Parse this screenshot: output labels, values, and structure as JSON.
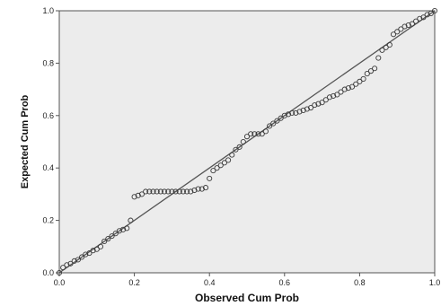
{
  "chart_data": {
    "type": "scatter",
    "title": "",
    "xlabel": "Observed Cum Prob",
    "ylabel": "Expected Cum Prob",
    "xlim": [
      0.0,
      1.0
    ],
    "ylim": [
      0.0,
      1.0
    ],
    "xticks": [
      0.0,
      0.2,
      0.4,
      0.6,
      0.8,
      1.0
    ],
    "yticks": [
      0.0,
      0.2,
      0.4,
      0.6,
      0.8,
      1.0
    ],
    "xtick_labels": [
      "0.0",
      "0.2",
      "0.4",
      "0.6",
      "0.8",
      "1.0"
    ],
    "ytick_labels": [
      "0.0",
      "0.2",
      "0.4",
      "0.6",
      "0.8",
      "1.0"
    ],
    "grid": false,
    "legend": false,
    "plot_background": "#ececec",
    "marker": "open-circle",
    "marker_color": "#3a3a3a",
    "reference_line": {
      "from": [
        0.0,
        0.0
      ],
      "to": [
        1.0,
        1.0
      ],
      "color": "#555555"
    },
    "points": [
      [
        0.0,
        0.0
      ],
      [
        0.01,
        0.02
      ],
      [
        0.02,
        0.03
      ],
      [
        0.03,
        0.035
      ],
      [
        0.04,
        0.045
      ],
      [
        0.05,
        0.05
      ],
      [
        0.06,
        0.06
      ],
      [
        0.07,
        0.07
      ],
      [
        0.08,
        0.075
      ],
      [
        0.09,
        0.085
      ],
      [
        0.1,
        0.09
      ],
      [
        0.11,
        0.1
      ],
      [
        0.12,
        0.12
      ],
      [
        0.13,
        0.13
      ],
      [
        0.14,
        0.14
      ],
      [
        0.15,
        0.15
      ],
      [
        0.16,
        0.16
      ],
      [
        0.17,
        0.165
      ],
      [
        0.18,
        0.17
      ],
      [
        0.19,
        0.2
      ],
      [
        0.2,
        0.29
      ],
      [
        0.21,
        0.295
      ],
      [
        0.22,
        0.3
      ],
      [
        0.23,
        0.31
      ],
      [
        0.24,
        0.31
      ],
      [
        0.25,
        0.31
      ],
      [
        0.26,
        0.31
      ],
      [
        0.27,
        0.31
      ],
      [
        0.28,
        0.31
      ],
      [
        0.29,
        0.31
      ],
      [
        0.3,
        0.31
      ],
      [
        0.31,
        0.31
      ],
      [
        0.32,
        0.31
      ],
      [
        0.33,
        0.31
      ],
      [
        0.34,
        0.31
      ],
      [
        0.35,
        0.31
      ],
      [
        0.36,
        0.315
      ],
      [
        0.37,
        0.32
      ],
      [
        0.38,
        0.32
      ],
      [
        0.39,
        0.325
      ],
      [
        0.4,
        0.36
      ],
      [
        0.41,
        0.39
      ],
      [
        0.42,
        0.4
      ],
      [
        0.43,
        0.41
      ],
      [
        0.44,
        0.42
      ],
      [
        0.45,
        0.43
      ],
      [
        0.46,
        0.45
      ],
      [
        0.47,
        0.47
      ],
      [
        0.48,
        0.48
      ],
      [
        0.49,
        0.5
      ],
      [
        0.5,
        0.52
      ],
      [
        0.51,
        0.53
      ],
      [
        0.52,
        0.53
      ],
      [
        0.53,
        0.53
      ],
      [
        0.54,
        0.53
      ],
      [
        0.55,
        0.54
      ],
      [
        0.56,
        0.56
      ],
      [
        0.57,
        0.57
      ],
      [
        0.58,
        0.58
      ],
      [
        0.59,
        0.59
      ],
      [
        0.6,
        0.6
      ],
      [
        0.61,
        0.605
      ],
      [
        0.62,
        0.61
      ],
      [
        0.63,
        0.61
      ],
      [
        0.64,
        0.615
      ],
      [
        0.65,
        0.62
      ],
      [
        0.66,
        0.625
      ],
      [
        0.67,
        0.63
      ],
      [
        0.68,
        0.64
      ],
      [
        0.69,
        0.645
      ],
      [
        0.7,
        0.65
      ],
      [
        0.71,
        0.66
      ],
      [
        0.72,
        0.67
      ],
      [
        0.73,
        0.675
      ],
      [
        0.74,
        0.68
      ],
      [
        0.75,
        0.69
      ],
      [
        0.76,
        0.7
      ],
      [
        0.77,
        0.705
      ],
      [
        0.78,
        0.71
      ],
      [
        0.79,
        0.72
      ],
      [
        0.8,
        0.73
      ],
      [
        0.81,
        0.74
      ],
      [
        0.82,
        0.76
      ],
      [
        0.83,
        0.77
      ],
      [
        0.84,
        0.78
      ],
      [
        0.85,
        0.82
      ],
      [
        0.86,
        0.85
      ],
      [
        0.87,
        0.86
      ],
      [
        0.88,
        0.87
      ],
      [
        0.89,
        0.91
      ],
      [
        0.9,
        0.92
      ],
      [
        0.91,
        0.93
      ],
      [
        0.92,
        0.94
      ],
      [
        0.93,
        0.945
      ],
      [
        0.94,
        0.95
      ],
      [
        0.95,
        0.96
      ],
      [
        0.96,
        0.97
      ],
      [
        0.97,
        0.975
      ],
      [
        0.98,
        0.985
      ],
      [
        0.99,
        0.99
      ],
      [
        1.0,
        1.0
      ]
    ]
  }
}
